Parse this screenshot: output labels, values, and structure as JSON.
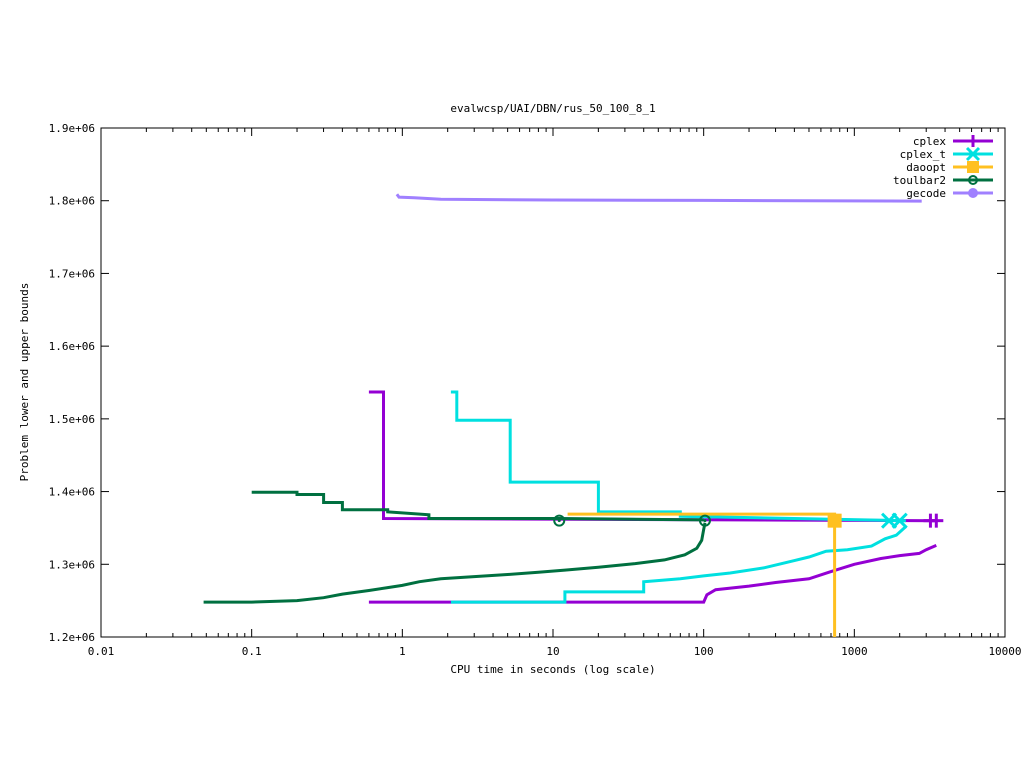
{
  "chart_data": {
    "type": "line",
    "title": "evalwcsp/UAI/DBN/rus_50_100_8_1",
    "xlabel": "CPU time in seconds (log scale)",
    "ylabel": "Problem lower and upper bounds",
    "xscale": "log",
    "xlim": [
      0.01,
      10000
    ],
    "ylim": [
      1200000,
      1900000
    ],
    "x_tick_labels": [
      {
        "v": 0.01,
        "label": "0.01"
      },
      {
        "v": 0.1,
        "label": "0.1"
      },
      {
        "v": 1,
        "label": "1"
      },
      {
        "v": 10,
        "label": "10"
      },
      {
        "v": 100,
        "label": "100"
      },
      {
        "v": 1000,
        "label": "1000"
      },
      {
        "v": 10000,
        "label": "10000"
      }
    ],
    "y_tick_labels": [
      {
        "v": 1200000,
        "label": "1.2e+06"
      },
      {
        "v": 1300000,
        "label": "1.3e+06"
      },
      {
        "v": 1400000,
        "label": "1.4e+06"
      },
      {
        "v": 1500000,
        "label": "1.5e+06"
      },
      {
        "v": 1600000,
        "label": "1.6e+06"
      },
      {
        "v": 1700000,
        "label": "1.7e+06"
      },
      {
        "v": 1800000,
        "label": "1.8e+06"
      },
      {
        "v": 1900000,
        "label": "1.9e+06"
      }
    ],
    "grid": false,
    "legend_position": "top-right",
    "series": [
      {
        "name": "cplex",
        "color": "#9400d3",
        "marker": "plus",
        "lines": [
          {
            "role": "upper",
            "points": [
              [
                0.6,
                1537000
              ],
              [
                0.75,
                1537000
              ],
              [
                0.75,
                1363000
              ],
              [
                3500,
                1360000
              ]
            ]
          },
          {
            "role": "lower",
            "points": [
              [
                0.6,
                1248000
              ],
              [
                100,
                1248000
              ],
              [
                105,
                1258000
              ],
              [
                120,
                1265000
              ],
              [
                200,
                1270000
              ],
              [
                300,
                1275000
              ],
              [
                500,
                1280000
              ],
              [
                700,
                1290000
              ],
              [
                1000,
                1300000
              ],
              [
                1500,
                1308000
              ],
              [
                2000,
                1312000
              ],
              [
                2700,
                1315000
              ],
              [
                3000,
                1320000
              ],
              [
                3500,
                1326000
              ]
            ]
          }
        ],
        "markers": [
          [
            3200,
            1360000
          ],
          [
            3500,
            1360000
          ]
        ]
      },
      {
        "name": "cplex_t",
        "color": "#00e0e0",
        "marker": "x",
        "lines": [
          {
            "role": "upper",
            "points": [
              [
                2.1,
                1537000
              ],
              [
                2.3,
                1537000
              ],
              [
                2.3,
                1498000
              ],
              [
                5.2,
                1498000
              ],
              [
                5.2,
                1413000
              ],
              [
                20,
                1413000
              ],
              [
                20,
                1372000
              ],
              [
                70,
                1372000
              ],
              [
                70,
                1366000
              ],
              [
                2200,
                1360000
              ]
            ]
          },
          {
            "role": "lower",
            "points": [
              [
                2.1,
                1248000
              ],
              [
                12,
                1248000
              ],
              [
                12,
                1262000
              ],
              [
                40,
                1262000
              ],
              [
                40,
                1276000
              ],
              [
                70,
                1280000
              ],
              [
                100,
                1284000
              ],
              [
                150,
                1288000
              ],
              [
                250,
                1295000
              ],
              [
                400,
                1305000
              ],
              [
                500,
                1310000
              ],
              [
                650,
                1318000
              ],
              [
                900,
                1320000
              ],
              [
                1300,
                1325000
              ],
              [
                1600,
                1335000
              ],
              [
                1900,
                1340000
              ],
              [
                2200,
                1352000
              ]
            ]
          }
        ],
        "markers": [
          [
            1700,
            1360000
          ],
          [
            2000,
            1360000
          ]
        ]
      },
      {
        "name": "daoopt",
        "color": "#ffc020",
        "marker": "square",
        "lines": [
          {
            "role": "upper",
            "points": [
              [
                12.5,
                1369000
              ],
              [
                740,
                1369000
              ],
              [
                740,
                1363000
              ]
            ]
          },
          {
            "role": "lower",
            "points": [
              [
                740,
                1200000
              ],
              [
                740,
                1362000
              ]
            ]
          }
        ],
        "markers": [
          [
            740,
            1360000
          ]
        ]
      },
      {
        "name": "toulbar2",
        "color": "#007040",
        "marker": "circle",
        "lines": [
          {
            "role": "upper",
            "points": [
              [
                0.1,
                1399000
              ],
              [
                0.2,
                1399000
              ],
              [
                0.2,
                1396000
              ],
              [
                0.3,
                1396000
              ],
              [
                0.3,
                1385000
              ],
              [
                0.4,
                1385000
              ],
              [
                0.4,
                1375000
              ],
              [
                0.8,
                1375000
              ],
              [
                0.8,
                1372000
              ],
              [
                1.5,
                1368000
              ],
              [
                1.5,
                1363000
              ],
              [
                11,
                1363000
              ],
              [
                100,
                1361000
              ]
            ]
          },
          {
            "role": "lower",
            "points": [
              [
                0.048,
                1248000
              ],
              [
                0.1,
                1248000
              ],
              [
                0.2,
                1250000
              ],
              [
                0.3,
                1254000
              ],
              [
                0.4,
                1259000
              ],
              [
                0.6,
                1264000
              ],
              [
                0.8,
                1268000
              ],
              [
                1,
                1271000
              ],
              [
                1.3,
                1276000
              ],
              [
                1.8,
                1280000
              ],
              [
                3,
                1283000
              ],
              [
                5,
                1286000
              ],
              [
                8,
                1289000
              ],
              [
                12,
                1292000
              ],
              [
                20,
                1296000
              ],
              [
                35,
                1301000
              ],
              [
                55,
                1306000
              ],
              [
                75,
                1313000
              ],
              [
                90,
                1322000
              ],
              [
                97,
                1333000
              ],
              [
                100,
                1348000
              ],
              [
                102,
                1357000
              ]
            ]
          }
        ],
        "markers": [
          [
            11,
            1360000
          ],
          [
            102,
            1360000
          ]
        ]
      },
      {
        "name": "gecode",
        "color": "#a080ff",
        "marker": "dot",
        "lines": [
          {
            "role": "upper",
            "points": [
              [
                0.92,
                1809000
              ],
              [
                0.95,
                1805000
              ],
              [
                1.2,
                1804000
              ],
              [
                1.8,
                1802000
              ],
              [
                10,
                1801000
              ],
              [
                100,
                1800500
              ],
              [
                2800,
                1799500
              ]
            ]
          }
        ],
        "markers": []
      }
    ]
  }
}
